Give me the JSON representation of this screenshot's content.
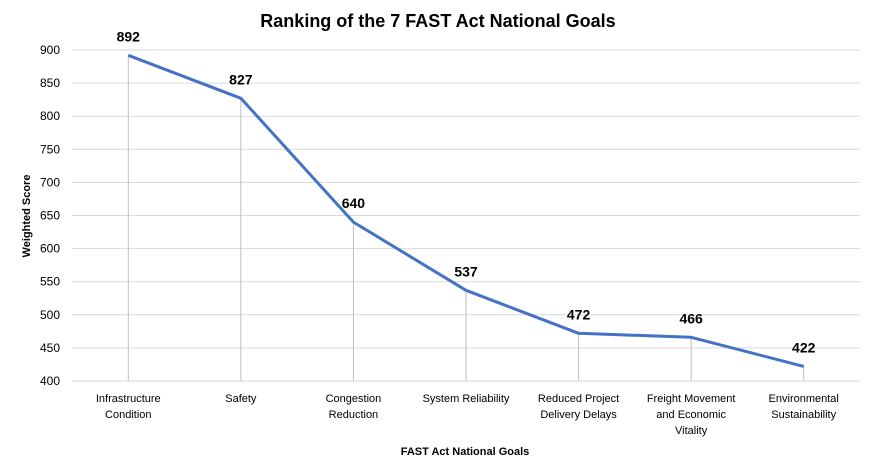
{
  "chart_data": {
    "type": "line",
    "title": "Ranking of the 7 FAST Act National Goals",
    "xlabel": "FAST Act National Goals",
    "ylabel": "Weighted Score",
    "categories": [
      [
        "Infrastructure",
        "Condition"
      ],
      [
        "Safety"
      ],
      [
        "Congestion",
        "Reduction"
      ],
      [
        "System Reliability"
      ],
      [
        "Reduced Project",
        "Delivery Delays"
      ],
      [
        "Freight Movement",
        "and Economic",
        "Vitality"
      ],
      [
        "Environmental",
        "Sustainability"
      ]
    ],
    "values": [
      892,
      827,
      640,
      537,
      472,
      466,
      422
    ],
    "ylim": [
      400,
      900
    ],
    "yticks": [
      400,
      450,
      500,
      550,
      600,
      650,
      700,
      750,
      800,
      850,
      900
    ],
    "grid": true,
    "drop_lines": true,
    "series_color": "#4472C4",
    "grid_color": "#d9d9d9"
  }
}
